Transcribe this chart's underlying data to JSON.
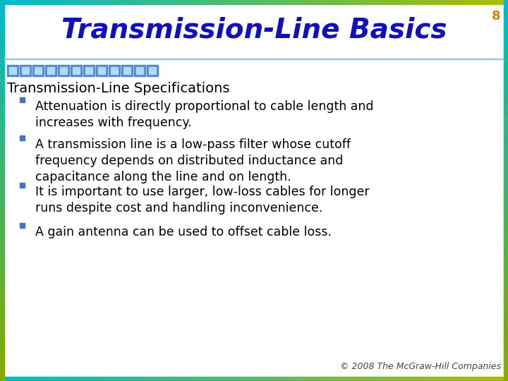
{
  "slide_number": "8",
  "title": "Transmission-Line Basics",
  "title_color": "#1111BB",
  "title_fontsize": 28,
  "title_style": "italic",
  "title_weight": "bold",
  "section_header": "Transmission-Line Specifications",
  "section_color": "#000000",
  "section_fontsize": 14,
  "bullet_color": "#000000",
  "bullet_fontsize": 12.5,
  "bullet_marker_color": "#4472C4",
  "bullets": [
    "Attenuation is directly proportional to cable length and\nincreases with frequency.",
    "A transmission line is a low-pass filter whose cutoff\nfrequency depends on distributed inductance and\ncapacitance along the line and on length.",
    "It is important to use larger, low-loss cables for longer\nruns despite cost and handling inconvenience.",
    "A gain antenna can be used to offset cable loss."
  ],
  "footer": "© 2008 The McGraw-Hill Companies",
  "footer_color": "#444444",
  "footer_fontsize": 9,
  "bg_color": "#FFFFFF",
  "slide_number_color": "#CC8800",
  "num_header_squares": 12,
  "border_thickness": 6
}
